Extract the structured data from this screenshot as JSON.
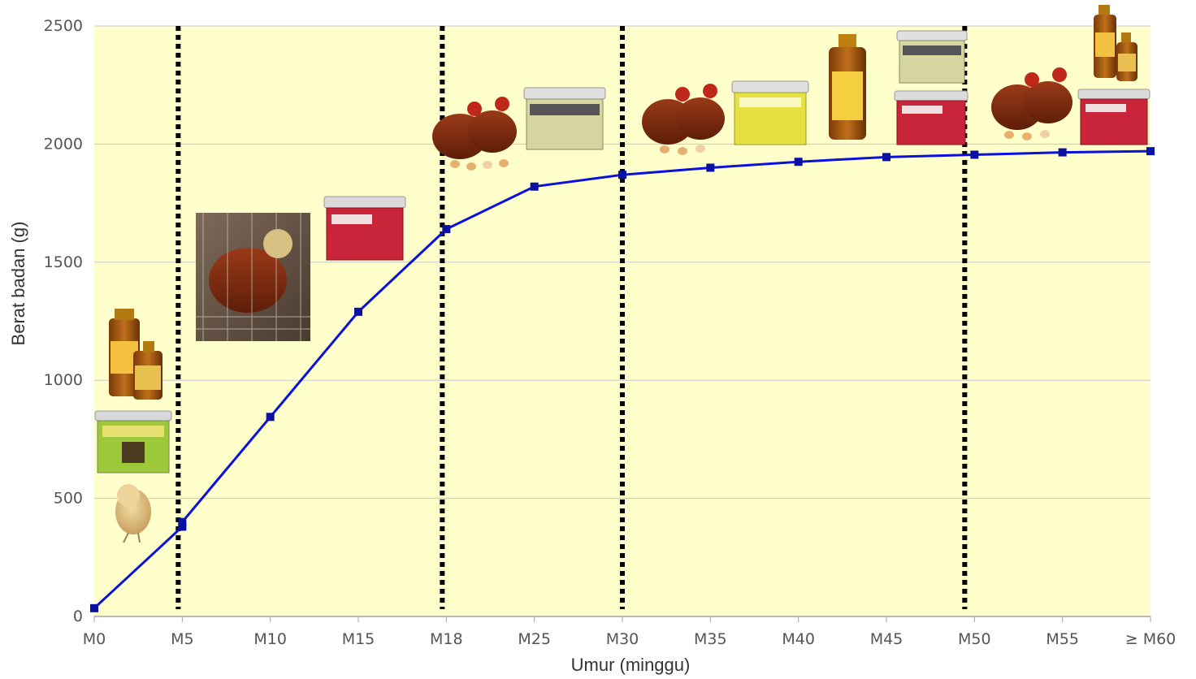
{
  "chart_data": {
    "type": "line",
    "title": "",
    "xlabel": "Umur (minggu)",
    "ylabel": "Berat badan (g)",
    "categories": [
      "M0",
      "M5",
      "M10",
      "M15",
      "M18",
      "M25",
      "M30",
      "M35",
      "M40",
      "M45",
      "M50",
      "M55",
      "≥ M60"
    ],
    "y_ticks": [
      "0",
      "500",
      "1000",
      "1500",
      "2000",
      "2500"
    ],
    "ylim": [
      0,
      2500
    ],
    "grid": "horizontal",
    "plot_background": "#FFFFCC",
    "line_color": "#0A10E0",
    "marker_color": "#0A10A0",
    "series": [
      {
        "points": [
          {
            "x": "M0",
            "y": 35
          },
          {
            "x": "M5",
            "y": 380
          },
          {
            "x": "M5",
            "y": 400
          },
          {
            "x": "M10",
            "y": 845
          },
          {
            "x": "M15",
            "y": 1290
          },
          {
            "x": "M18",
            "y": 1640
          },
          {
            "x": "M25",
            "y": 1820
          },
          {
            "x": "M30",
            "y": 1870
          },
          {
            "x": "M35",
            "y": 1900
          },
          {
            "x": "M40",
            "y": 1925
          },
          {
            "x": "M45",
            "y": 1945
          },
          {
            "x": "M50",
            "y": 1955
          },
          {
            "x": "M55",
            "y": 1965
          },
          {
            "x": "≥ M60",
            "y": 1970
          }
        ]
      }
    ],
    "phase_dividers": [
      "M5",
      "M18",
      "M30",
      "M50"
    ],
    "illustrations": [
      {
        "name": "chick-photo",
        "stage": "M0-M5"
      },
      {
        "name": "supplement-tub-green",
        "stage": "M0-M5"
      },
      {
        "name": "supplement-bottles",
        "stage": "M0-M5"
      },
      {
        "name": "hen-in-cage-photo",
        "stage": "M5-M18"
      },
      {
        "name": "fortevit-tub",
        "stage": "M5-M18"
      },
      {
        "name": "hens-with-eggs-photo",
        "stage": "M18-M30"
      },
      {
        "name": "supplement-tub-grey",
        "stage": "M18-M30"
      },
      {
        "name": "hens-with-eggs-photo",
        "stage": "M30-M50"
      },
      {
        "name": "aminovit-tub",
        "stage": "M30-M50"
      },
      {
        "name": "supplement-bottle",
        "stage": "M30-M50"
      },
      {
        "name": "supplement-tub-grey",
        "stage": "M30-M50"
      },
      {
        "name": "fortevit-tub",
        "stage": "M30-M50"
      },
      {
        "name": "hens-with-eggs-photo",
        "stage": "M50-M60"
      },
      {
        "name": "supplement-bottles",
        "stage": "M50-M60"
      },
      {
        "name": "fortevit-tub",
        "stage": "M50-M60"
      }
    ]
  }
}
